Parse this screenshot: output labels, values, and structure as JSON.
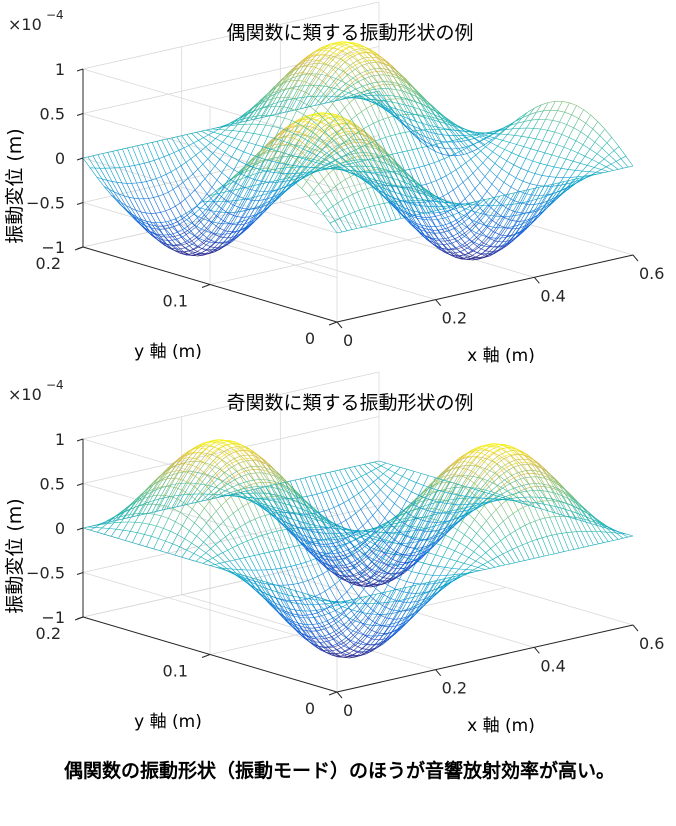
{
  "chart_data": [
    {
      "type": "surface",
      "surface_style": "mesh",
      "colormap": "parula",
      "title": "偶関数に類する振動形状の例",
      "xlabel": "x 軸 (m)",
      "ylabel": "y 軸 (m)",
      "zlabel": "振動変位 (m)",
      "z_exponent_label": "×10^-4",
      "xlim": [
        0,
        0.6
      ],
      "ylim": [
        0,
        0.2
      ],
      "zlim": [
        -1,
        1
      ],
      "xticks": [
        "0",
        "0.2",
        "0.4",
        "0.6"
      ],
      "yticks": [
        "0",
        "0.1",
        "0.2"
      ],
      "zticks": [
        "-1",
        "-0.5",
        "0",
        "0.5",
        "1"
      ],
      "grid": true,
      "function": "z = 1e-4 * sin(2*pi*y/0.2) * cos(2*pi*x/0.6 - pi/3)",
      "mode": "even"
    },
    {
      "type": "surface",
      "surface_style": "mesh",
      "colormap": "parula",
      "title": "奇関数に類する振動形状の例",
      "xlabel": "x 軸 (m)",
      "ylabel": "y 軸 (m)",
      "zlabel": "振動変位 (m)",
      "z_exponent_label": "×10^-4",
      "xlim": [
        0,
        0.6
      ],
      "ylim": [
        0,
        0.2
      ],
      "zlim": [
        -1,
        1
      ],
      "xticks": [
        "0",
        "0.2",
        "0.4",
        "0.6"
      ],
      "yticks": [
        "0",
        "0.1",
        "0.2"
      ],
      "zticks": [
        "-1",
        "-0.5",
        "0",
        "0.5",
        "1"
      ],
      "grid": true,
      "function": "z = -1e-4 * sin(2*pi*y/0.2) * sin(2*pi*x/0.6)",
      "mode": "odd"
    }
  ],
  "caption": "偶関数の振動形状（振動モード）のほうが音響放射効率が高い。"
}
